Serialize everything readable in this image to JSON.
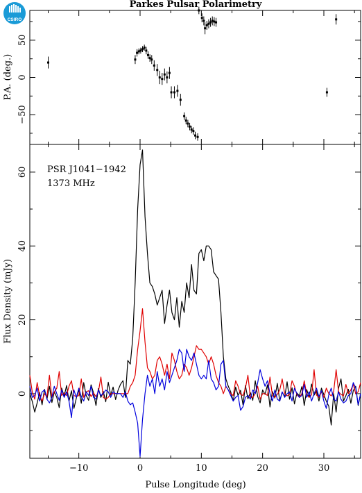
{
  "title": "Parkes Pulsar Polarimetry",
  "logo": {
    "text": "CSIRO",
    "color": "#1a9bd7"
  },
  "chart_data": [
    {
      "type": "scatter",
      "name": "pa_panel",
      "ylabel": "P.A. (deg.)",
      "xlim": [
        -18,
        36
      ],
      "ylim": [
        -90,
        90
      ],
      "yticks": [
        -50,
        0,
        50
      ],
      "points": [
        {
          "x": -15.0,
          "y": 20,
          "err": 8
        },
        {
          "x": -0.8,
          "y": 24,
          "err": 6
        },
        {
          "x": -0.5,
          "y": 33,
          "err": 5
        },
        {
          "x": -0.2,
          "y": 35,
          "err": 4
        },
        {
          "x": 0.1,
          "y": 36,
          "err": 4
        },
        {
          "x": 0.4,
          "y": 38,
          "err": 4
        },
        {
          "x": 0.7,
          "y": 40,
          "err": 4
        },
        {
          "x": 1.0,
          "y": 36,
          "err": 5
        },
        {
          "x": 1.3,
          "y": 30,
          "err": 5
        },
        {
          "x": 1.6,
          "y": 26,
          "err": 5
        },
        {
          "x": 1.9,
          "y": 24,
          "err": 6
        },
        {
          "x": 2.3,
          "y": 16,
          "err": 7
        },
        {
          "x": 2.8,
          "y": 10,
          "err": 8
        },
        {
          "x": 3.2,
          "y": 0,
          "err": 9
        },
        {
          "x": 3.6,
          "y": -2,
          "err": 8
        },
        {
          "x": 4.0,
          "y": 4,
          "err": 8
        },
        {
          "x": 4.4,
          "y": 0,
          "err": 8
        },
        {
          "x": 4.8,
          "y": 6,
          "err": 8
        },
        {
          "x": 5.1,
          "y": -20,
          "err": 8
        },
        {
          "x": 5.6,
          "y": -20,
          "err": 8
        },
        {
          "x": 6.1,
          "y": -18,
          "err": 8
        },
        {
          "x": 6.6,
          "y": -30,
          "err": 8
        },
        {
          "x": 7.2,
          "y": -52,
          "err": 5
        },
        {
          "x": 7.5,
          "y": -58,
          "err": 5
        },
        {
          "x": 7.8,
          "y": -62,
          "err": 5
        },
        {
          "x": 8.1,
          "y": -66,
          "err": 5
        },
        {
          "x": 8.4,
          "y": -70,
          "err": 5
        },
        {
          "x": 8.7,
          "y": -72,
          "err": 5
        },
        {
          "x": 9.0,
          "y": -78,
          "err": 5
        },
        {
          "x": 9.4,
          "y": -80,
          "err": 5
        },
        {
          "x": 9.6,
          "y": 90,
          "err": 5
        },
        {
          "x": 10.1,
          "y": 80,
          "err": 6
        },
        {
          "x": 10.4,
          "y": 76,
          "err": 6
        },
        {
          "x": 10.6,
          "y": 66,
          "err": 8
        },
        {
          "x": 10.9,
          "y": 70,
          "err": 6
        },
        {
          "x": 11.2,
          "y": 72,
          "err": 6
        },
        {
          "x": 11.5,
          "y": 74,
          "err": 6
        },
        {
          "x": 11.8,
          "y": 76,
          "err": 6
        },
        {
          "x": 12.1,
          "y": 75,
          "err": 6
        },
        {
          "x": 12.4,
          "y": 74,
          "err": 6
        },
        {
          "x": 30.5,
          "y": -20,
          "err": 6
        },
        {
          "x": 32.0,
          "y": 78,
          "err": 7
        }
      ]
    },
    {
      "type": "line",
      "name": "flux_panel",
      "xlabel": "Pulse Longitude (deg)",
      "ylabel": "Flux Density (mJy)",
      "xlim": [
        -18,
        36
      ],
      "ylim": [
        -17.5,
        67.5
      ],
      "xticks": [
        -10,
        0,
        10,
        20,
        30
      ],
      "yticks": [
        0,
        20,
        40,
        60
      ],
      "annotations": [
        "PSR J1041−1942",
        "1373 MHz"
      ],
      "x": [
        -18.0,
        -17.6,
        -17.2,
        -16.8,
        -16.4,
        -16.0,
        -15.6,
        -15.2,
        -14.8,
        -14.4,
        -14.0,
        -13.6,
        -13.2,
        -12.8,
        -12.4,
        -12.0,
        -11.6,
        -11.2,
        -10.8,
        -10.4,
        -10.0,
        -9.6,
        -9.2,
        -8.8,
        -8.4,
        -8.0,
        -7.6,
        -7.2,
        -6.8,
        -6.4,
        -6.0,
        -5.6,
        -5.2,
        -4.8,
        -4.4,
        -4.0,
        -3.6,
        -3.2,
        -2.8,
        -2.4,
        -2.0,
        -1.6,
        -1.2,
        -0.8,
        -0.4,
        0.0,
        0.4,
        0.8,
        1.2,
        1.6,
        2.0,
        2.4,
        2.8,
        3.2,
        3.6,
        4.0,
        4.4,
        4.8,
        5.2,
        5.6,
        6.0,
        6.4,
        6.8,
        7.2,
        7.6,
        8.0,
        8.4,
        8.8,
        9.2,
        9.6,
        10.0,
        10.4,
        10.8,
        11.2,
        11.6,
        12.0,
        12.4,
        12.8,
        13.2,
        13.6,
        14.0,
        14.4,
        14.8,
        15.2,
        15.6,
        16.0,
        16.4,
        16.8,
        17.2,
        17.6,
        18.0,
        18.4,
        18.8,
        19.2,
        19.6,
        20.0,
        20.4,
        20.8,
        21.2,
        21.6,
        22.0,
        22.4,
        22.8,
        23.2,
        23.6,
        24.0,
        24.4,
        24.8,
        25.2,
        25.6,
        26.0,
        26.4,
        26.8,
        27.2,
        27.6,
        28.0,
        28.4,
        28.8,
        29.2,
        29.6,
        30.0,
        30.4,
        30.8,
        31.2,
        31.6,
        32.0,
        32.4,
        32.8,
        33.2,
        33.6,
        34.0,
        34.4,
        34.8,
        35.2,
        35.6,
        36.0
      ],
      "series": [
        {
          "color": "#000000",
          "values": [
            0.0,
            -2.1,
            -5.0,
            -2.5,
            0.3,
            -3.0,
            1.2,
            -1.5,
            2.0,
            -2.4,
            0.5,
            -1.0,
            -3.8,
            1.5,
            -0.7,
            2.2,
            -2.0,
            0.8,
            -4.0,
            -1.2,
            1.0,
            -2.6,
            3.0,
            -0.5,
            -1.8,
            2.4,
            0.2,
            -3.2,
            1.4,
            -1.0,
            0.6,
            -2.2,
            3.1,
            -0.4,
            1.8,
            -1.6,
            0.9,
            2.5,
            3.5,
            -1.0,
            9.0,
            8.0,
            15.0,
            30.0,
            50.0,
            62.0,
            66.0,
            48.0,
            38.0,
            30.0,
            29.0,
            27.0,
            24.0,
            26.0,
            28.0,
            19.0,
            24.0,
            28.0,
            22.0,
            20.0,
            26.0,
            18.0,
            25.0,
            22.0,
            30.0,
            26.0,
            35.0,
            28.0,
            27.0,
            38.0,
            39.0,
            36.0,
            40.0,
            40.0,
            39.0,
            33.0,
            32.0,
            31.0,
            22.0,
            10.0,
            4.0,
            2.0,
            0.5,
            -2.0,
            1.8,
            -0.5,
            0.9,
            -3.0,
            2.2,
            -1.4,
            0.3,
            -1.8,
            3.5,
            -0.8,
            -2.5,
            1.0,
            -0.2,
            2.4,
            -3.6,
            0.6,
            -1.2,
            2.8,
            -2.0,
            0.4,
            -0.9,
            3.2,
            -1.5,
            1.6,
            -2.8,
            0.2,
            -0.6,
            1.9,
            -3.2,
            1.1,
            -1.0,
            2.6,
            -0.4,
            0.8,
            -2.0,
            1.5,
            -0.3,
            -2.0,
            -3.4,
            -8.5,
            0.0,
            -5.0,
            1.5,
            4.0,
            -2.0,
            -0.5,
            1.2,
            -2.6,
            0.8,
            2.0,
            -3.2,
            0.0
          ]
        },
        {
          "color": "#e00000",
          "values": [
            5.0,
            0.5,
            -1.5,
            3.0,
            -0.5,
            -2.0,
            0.0,
            -0.8,
            5.0,
            -1.0,
            0.5,
            1.5,
            6.0,
            -0.5,
            0.2,
            -0.5,
            2.0,
            3.5,
            -0.5,
            -0.8,
            -0.5,
            4.0,
            -1.0,
            0.5,
            0.8,
            -0.8,
            0.2,
            -0.8,
            0.5,
            4.5,
            -1.0,
            -1.5,
            -1.0,
            0.0,
            0.0,
            0.0,
            0.0,
            0.0,
            0.0,
            0.0,
            0.0,
            2.0,
            3.0,
            5.0,
            12.0,
            17.0,
            23.0,
            14.0,
            7.0,
            6.0,
            4.0,
            5.0,
            9.0,
            10.0,
            8.0,
            5.0,
            8.0,
            4.0,
            11.0,
            9.0,
            6.0,
            4.0,
            5.0,
            8.0,
            7.0,
            5.0,
            7.0,
            10.0,
            13.0,
            12.0,
            12.0,
            11.0,
            10.0,
            8.0,
            10.0,
            8.0,
            5.0,
            3.0,
            2.0,
            0.0,
            2.0,
            1.0,
            0.0,
            -0.5,
            3.5,
            2.0,
            -0.2,
            -0.5,
            1.5,
            5.0,
            -1.0,
            -1.0,
            0.0,
            2.0,
            -1.5,
            0.0,
            0.0,
            -0.5,
            4.5,
            -0.5,
            -1.0,
            -0.2,
            1.0,
            4.0,
            0.0,
            -0.6,
            -0.2,
            3.5,
            2.0,
            -0.3,
            -1.0,
            0.0,
            3.5,
            -0.2,
            -1.0,
            -0.3,
            6.5,
            -0.4,
            -1.0,
            0.5,
            -1.0,
            1.5,
            0.0,
            -0.6,
            0.5,
            6.5,
            0.5,
            -0.2,
            -0.6,
            2.5,
            0.0,
            1.0,
            2.5,
            0.0,
            0.5,
            3.0
          ]
        },
        {
          "color": "#0000dd",
          "values": [
            2.0,
            -1.0,
            -0.5,
            1.5,
            -2.0,
            0.5,
            1.0,
            -1.5,
            -2.5,
            -1.0,
            2.0,
            0.0,
            -1.8,
            1.0,
            -1.0,
            0.5,
            -2.0,
            -6.5,
            1.0,
            -1.0,
            1.5,
            -0.8,
            -2.0,
            0.5,
            -0.5,
            2.0,
            -1.0,
            -1.5,
            1.0,
            -0.5,
            0.0,
            1.0,
            0.5,
            -1.0,
            0.5,
            0.0,
            0.0,
            0.0,
            -1.0,
            0.5,
            -2.0,
            -3.0,
            -2.5,
            -5.0,
            -8.0,
            -17.0,
            -7.0,
            0.0,
            5.0,
            2.0,
            4.0,
            0.0,
            6.0,
            2.0,
            4.0,
            1.0,
            6.0,
            3.0,
            5.0,
            7.0,
            9.0,
            12.0,
            11.0,
            6.0,
            12.0,
            10.0,
            9.0,
            11.0,
            8.0,
            5.0,
            4.0,
            5.0,
            4.0,
            9.0,
            4.0,
            3.0,
            1.0,
            2.0,
            8.0,
            9.0,
            2.0,
            1.0,
            -0.5,
            -2.0,
            -1.0,
            -0.5,
            -4.5,
            -3.5,
            -1.0,
            -0.5,
            -1.5,
            1.0,
            0.0,
            3.0,
            6.5,
            4.0,
            2.0,
            3.5,
            0.0,
            -2.0,
            1.0,
            -1.5,
            -2.0,
            0.5,
            -1.0,
            0.0,
            0.5,
            -2.0,
            1.5,
            0.0,
            -1.0,
            -0.5,
            2.5,
            -1.0,
            0.5,
            -2.0,
            0.0,
            1.5,
            -0.8,
            0.8,
            -2.0,
            -4.0,
            -0.3,
            1.5,
            -1.5,
            -2.0,
            0.5,
            -1.5,
            -2.5,
            -2.0,
            -0.5,
            0.0,
            3.0,
            1.5,
            -3.0,
            0.0
          ]
        }
      ]
    }
  ]
}
